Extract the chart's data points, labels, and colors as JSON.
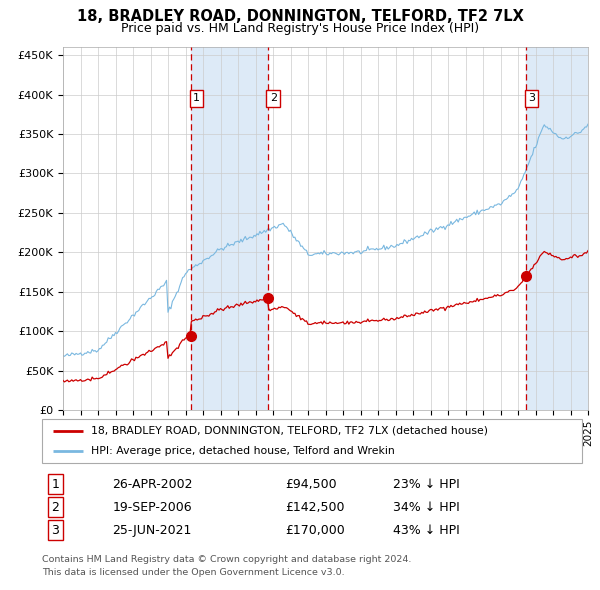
{
  "title1": "18, BRADLEY ROAD, DONNINGTON, TELFORD, TF2 7LX",
  "title2": "Price paid vs. HM Land Registry's House Price Index (HPI)",
  "ylim": [
    0,
    460000
  ],
  "yticks": [
    0,
    50000,
    100000,
    150000,
    200000,
    250000,
    300000,
    350000,
    400000,
    450000
  ],
  "ytick_labels": [
    "£0",
    "£50K",
    "£100K",
    "£150K",
    "£200K",
    "£250K",
    "£300K",
    "£350K",
    "£400K",
    "£450K"
  ],
  "hpi_color": "#7ab8e0",
  "price_color": "#cc0000",
  "sale_dates": [
    2002.32,
    2006.72,
    2021.48
  ],
  "sale_prices": [
    94500,
    142500,
    170000
  ],
  "sale_labels": [
    "1",
    "2",
    "3"
  ],
  "vline_color": "#cc0000",
  "shade_color": "#ddeaf7",
  "legend1": "18, BRADLEY ROAD, DONNINGTON, TELFORD, TF2 7LX (detached house)",
  "legend2": "HPI: Average price, detached house, Telford and Wrekin",
  "table_entries": [
    {
      "num": "1",
      "date": "26-APR-2002",
      "price": "£94,500",
      "hpi": "23% ↓ HPI"
    },
    {
      "num": "2",
      "date": "19-SEP-2006",
      "price": "£142,500",
      "hpi": "34% ↓ HPI"
    },
    {
      "num": "3",
      "date": "25-JUN-2021",
      "price": "£170,000",
      "hpi": "43% ↓ HPI"
    }
  ],
  "footnote1": "Contains HM Land Registry data © Crown copyright and database right 2024.",
  "footnote2": "This data is licensed under the Open Government Licence v3.0.",
  "background_color": "#ffffff",
  "grid_color": "#cccccc"
}
